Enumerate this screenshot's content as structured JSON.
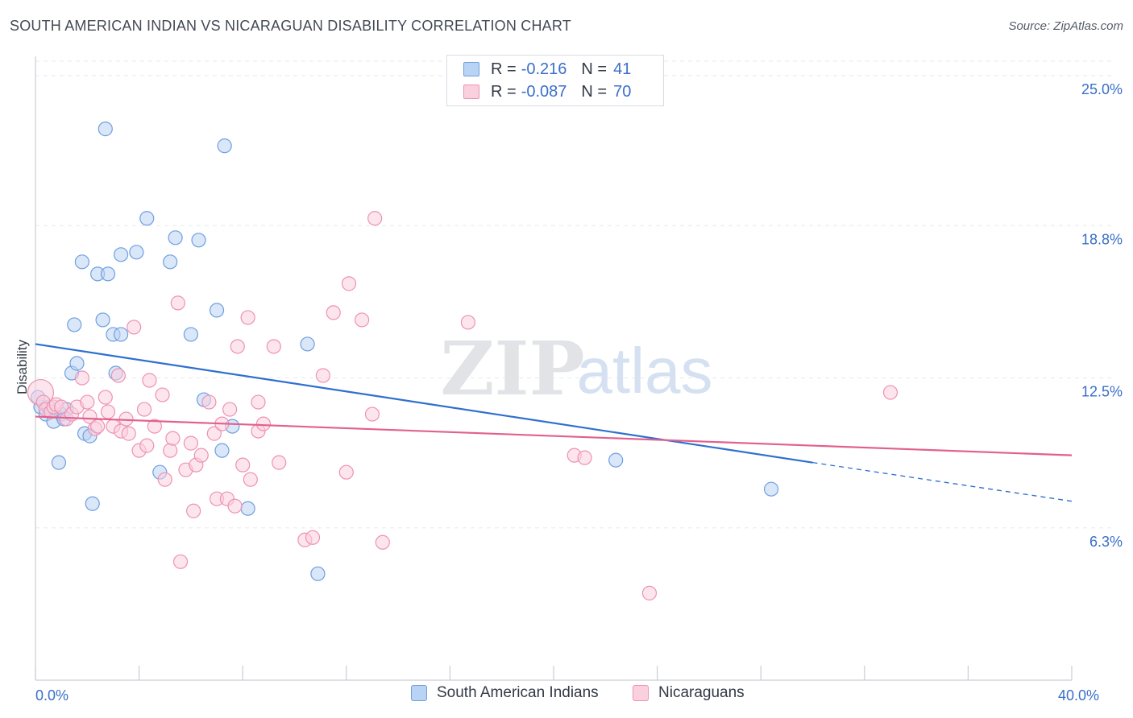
{
  "title": "SOUTH AMERICAN INDIAN VS NICARAGUAN DISABILITY CORRELATION CHART",
  "source": "Source: ZipAtlas.com",
  "watermark": {
    "zip": "ZIP",
    "atlas": "atlas"
  },
  "legend": {
    "r_label": "R =",
    "n_label": "N =",
    "rows": [
      {
        "r": "-0.216",
        "n": "41",
        "color": "#9fc1ee",
        "border": "#6f9fdf"
      },
      {
        "r": "-0.087",
        "n": "70",
        "color": "#f7bcd0",
        "border": "#ee92b2"
      }
    ]
  },
  "bottom_legend": [
    {
      "label": "South American Indians",
      "color": "#b9d3f4",
      "border": "#6f9fdf"
    },
    {
      "label": "Nicaraguans",
      "color": "#fbd0de",
      "border": "#ee92b2"
    }
  ],
  "chart_data": {
    "type": "scatter",
    "xlabel": "",
    "ylabel": "Disability",
    "xlim": [
      0,
      40
    ],
    "ylim": [
      0,
      25.8
    ],
    "x_tick_labels": [
      {
        "value": 0,
        "label": "0.0%"
      },
      {
        "value": 40,
        "label": "40.0%"
      }
    ],
    "y_tick_labels": [
      {
        "value": 6.3,
        "label": "6.3%"
      },
      {
        "value": 12.5,
        "label": "12.5%"
      },
      {
        "value": 18.8,
        "label": "18.8%"
      },
      {
        "value": 25.0,
        "label": "25.0%"
      }
    ],
    "grid": true,
    "series": [
      {
        "name": "South American Indians",
        "color": "#6f9fdf",
        "fill": "#b9d3f4",
        "trend_color": "#2f6fce",
        "trend": {
          "x0": 0,
          "y0": 13.9,
          "x1": 30.0,
          "y1": 9.0,
          "dash_to_x": 40,
          "dash_to_y": 7.4
        },
        "points": [
          [
            0.2,
            11.3
          ],
          [
            0.4,
            11.0
          ],
          [
            0.5,
            11.3
          ],
          [
            0.7,
            10.7
          ],
          [
            0.9,
            9.0
          ],
          [
            1.0,
            11.0
          ],
          [
            1.1,
            10.8
          ],
          [
            1.2,
            11.2
          ],
          [
            1.4,
            12.7
          ],
          [
            1.5,
            14.7
          ],
          [
            1.6,
            13.1
          ],
          [
            1.8,
            17.3
          ],
          [
            1.9,
            10.2
          ],
          [
            2.1,
            10.1
          ],
          [
            2.2,
            7.3
          ],
          [
            2.4,
            16.8
          ],
          [
            2.6,
            14.9
          ],
          [
            2.7,
            22.8
          ],
          [
            2.8,
            16.8
          ],
          [
            3.0,
            14.3
          ],
          [
            3.1,
            12.7
          ],
          [
            3.3,
            14.3
          ],
          [
            3.3,
            17.6
          ],
          [
            3.9,
            17.7
          ],
          [
            4.3,
            19.1
          ],
          [
            4.8,
            8.6
          ],
          [
            5.2,
            17.3
          ],
          [
            5.4,
            18.3
          ],
          [
            6.0,
            14.3
          ],
          [
            6.3,
            18.2
          ],
          [
            6.5,
            11.6
          ],
          [
            7.0,
            15.3
          ],
          [
            7.2,
            9.5
          ],
          [
            7.3,
            22.1
          ],
          [
            7.6,
            10.5
          ],
          [
            8.2,
            7.1
          ],
          [
            10.5,
            13.9
          ],
          [
            10.9,
            4.4
          ],
          [
            22.4,
            9.1
          ],
          [
            28.4,
            7.9
          ],
          [
            0.1,
            11.7
          ]
        ]
      },
      {
        "name": "Nicaraguans",
        "color": "#ee92b2",
        "fill": "#fbd0de",
        "trend_color": "#e2608e",
        "trend": {
          "x0": 0,
          "y0": 10.9,
          "x1": 40,
          "y1": 9.3
        },
        "points": [
          [
            0.2,
            11.9
          ],
          [
            0.3,
            11.5
          ],
          [
            0.4,
            11.2
          ],
          [
            0.6,
            11.1
          ],
          [
            0.7,
            11.3
          ],
          [
            0.8,
            11.4
          ],
          [
            1.0,
            11.3
          ],
          [
            1.2,
            10.8
          ],
          [
            1.4,
            11.0
          ],
          [
            1.6,
            11.3
          ],
          [
            1.8,
            12.5
          ],
          [
            2.0,
            11.5
          ],
          [
            2.1,
            10.9
          ],
          [
            2.3,
            10.4
          ],
          [
            2.4,
            10.5
          ],
          [
            2.7,
            11.7
          ],
          [
            2.8,
            11.1
          ],
          [
            3.0,
            10.5
          ],
          [
            3.2,
            12.6
          ],
          [
            3.3,
            10.3
          ],
          [
            3.5,
            10.8
          ],
          [
            3.6,
            10.2
          ],
          [
            3.8,
            14.6
          ],
          [
            4.0,
            9.5
          ],
          [
            4.2,
            11.2
          ],
          [
            4.3,
            9.7
          ],
          [
            4.4,
            12.4
          ],
          [
            4.6,
            10.5
          ],
          [
            4.9,
            11.8
          ],
          [
            5.0,
            8.3
          ],
          [
            5.2,
            9.5
          ],
          [
            5.3,
            10.0
          ],
          [
            5.5,
            15.6
          ],
          [
            5.6,
            4.9
          ],
          [
            5.8,
            8.7
          ],
          [
            6.0,
            9.8
          ],
          [
            6.1,
            7.0
          ],
          [
            6.2,
            8.9
          ],
          [
            6.4,
            9.3
          ],
          [
            6.7,
            11.5
          ],
          [
            6.9,
            10.2
          ],
          [
            7.0,
            7.5
          ],
          [
            7.2,
            10.6
          ],
          [
            7.4,
            7.5
          ],
          [
            7.5,
            11.2
          ],
          [
            7.7,
            7.2
          ],
          [
            7.8,
            13.8
          ],
          [
            8.0,
            8.9
          ],
          [
            8.2,
            15.0
          ],
          [
            8.3,
            8.3
          ],
          [
            8.6,
            11.5
          ],
          [
            8.6,
            10.3
          ],
          [
            8.8,
            10.6
          ],
          [
            9.2,
            13.8
          ],
          [
            9.4,
            9.0
          ],
          [
            10.4,
            5.8
          ],
          [
            10.7,
            5.9
          ],
          [
            11.1,
            12.6
          ],
          [
            11.5,
            15.2
          ],
          [
            12.0,
            8.6
          ],
          [
            12.1,
            16.4
          ],
          [
            12.6,
            14.9
          ],
          [
            13.0,
            11.0
          ],
          [
            13.1,
            19.1
          ],
          [
            13.4,
            5.7
          ],
          [
            16.7,
            14.8
          ],
          [
            20.8,
            9.3
          ],
          [
            21.2,
            9.2
          ],
          [
            23.7,
            3.6
          ],
          [
            33.0,
            11.9
          ]
        ]
      }
    ]
  }
}
